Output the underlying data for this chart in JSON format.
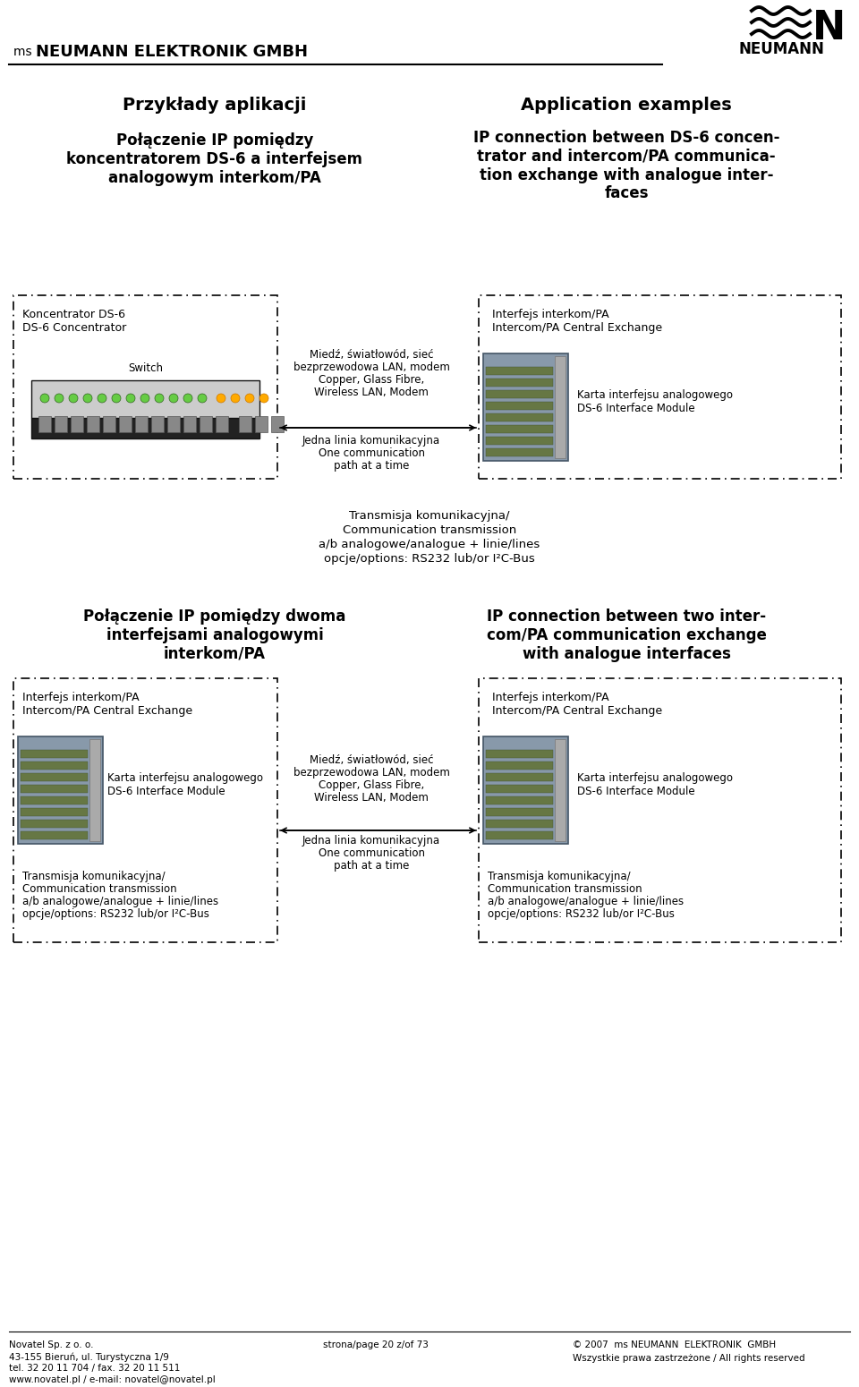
{
  "bg_color": "#ffffff",
  "page_title_left": "Przykłady aplikacji",
  "page_title_right": "Application examples",
  "section1_left_title": "Połączenie IP pomiędzy\nkoncentratorem DS-6 a interfejsem\nanalogowym interkom/PA",
  "section1_right_title": "IP connection between DS-6 concen-\ntrator and intercom/PA communica-\ntion exchange with analogue inter-\nfaces",
  "box1_left_label1": "Koncentrator DS-6",
  "box1_left_label2": "DS-6 Concentrator",
  "box1_left_sublabel": "Switch",
  "box1_center_label1": "Miedź, światłowód, sieć",
  "box1_center_label2": "bezprzewodowa LAN, modem",
  "box1_center_label3": "Copper, Glass Fibre,",
  "box1_center_label4": "Wireless LAN, Modem",
  "box1_center_label5": "Jedna linia komunikacyjna",
  "box1_center_label6": "One communication",
  "box1_center_label7": "path at a time",
  "box1_right_label1": "Interfejs interkom/PA",
  "box1_right_label2": "Intercom/PA Central Exchange",
  "box1_right_sublabel1": "Karta interfejsu analogowego",
  "box1_right_sublabel2": "DS-6 Interface Module",
  "transmission_label1": "Transmisja komunikacyjna/",
  "transmission_label2": "Communication transmission",
  "transmission_label3": "a/b analogowe/analogue + linie/lines",
  "transmission_label4": "opcje/options: RS232 lub/or I²C-Bus",
  "section2_left_title": "Połączenie IP pomiędzy dwoma\ninterfejsami analogowymi\ninterkom/PA",
  "section2_right_title": "IP connection between two inter-\ncom/PA communication exchange\nwith analogue interfaces",
  "box2a_label1": "Interfejs interkom/PA",
  "box2a_label2": "Intercom/PA Central Exchange",
  "box2a_sublabel1": "Karta interfejsu analogowego",
  "box2a_sublabel2": "DS-6 Interface Module",
  "box2_center_label1": "Miedź, światłowód, sieć",
  "box2_center_label2": "bezprzewodowa LAN, modem",
  "box2_center_label3": "Copper, Glass Fibre,",
  "box2_center_label4": "Wireless LAN, Modem",
  "box2_center_label5": "Jedna linia komunikacyjna",
  "box2_center_label6": "One communication",
  "box2_center_label7": "path at a time",
  "box2b_label1": "Interfejs interkom/PA",
  "box2b_label2": "Intercom/PA Central Exchange",
  "box2b_sublabel1": "Karta interfejsu analogowego",
  "box2b_sublabel2": "DS-6 Interface Module",
  "trans2a_label1": "Transmisja komunikacyjna/",
  "trans2a_label2": "Communication transmission",
  "trans2a_label3": "a/b analogowe/analogue + linie/lines",
  "trans2a_label4": "opcje/options: RS232 lub/or I²C-Bus",
  "trans2b_label1": "Transmisja komunikacyjna/",
  "trans2b_label2": "Communication transmission",
  "trans2b_label3": "a/b analogowe/analogue + linie/lines",
  "trans2b_label4": "opcje/options: RS232 lub/or I²C-Bus",
  "footer_left1": "Novatel Sp. z o. o.",
  "footer_left2": "43-155 Bieruń, ul. Turystyczna 1/9",
  "footer_left3": "tel. 32 20 11 704 / fax. 32 20 11 511",
  "footer_left4": "www.novatel.pl / e-mail: novatel@novatel.pl",
  "footer_center": "strona/page 20 z/of 73",
  "footer_right1": "© 2007  ms NEUMANN  ELEKTRONIK  GMBH",
  "footer_right2": "Wszystkie prawa zastrzeżone / All rights reserved"
}
